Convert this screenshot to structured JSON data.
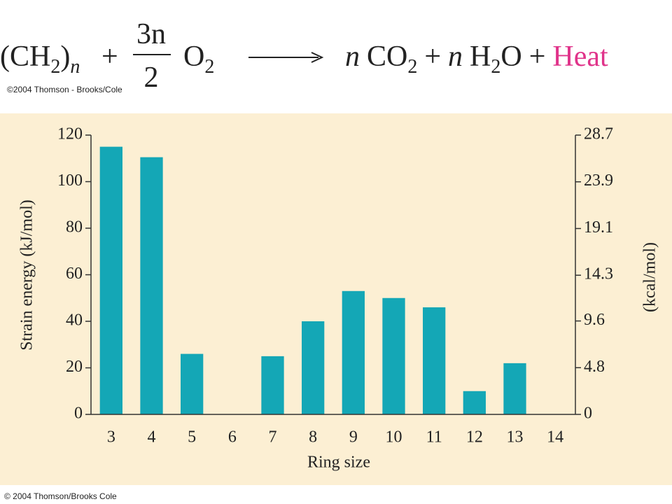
{
  "header": {
    "equation": {
      "reactant1": "(CH",
      "reactant1_sub": "2",
      "reactant1_close": ")",
      "reactant1_index": "n",
      "plus1": "+",
      "coef_num": "3n",
      "coef_den": "2",
      "reactant2": "O",
      "reactant2_sub": "2",
      "product1_coef": "n",
      "product1": "CO",
      "product1_sub": "2",
      "plus2": "+",
      "product2_coef": "n",
      "product2_a": "H",
      "product2_sub": "2",
      "product2_b": "O",
      "plus3": "+",
      "heat": "Heat"
    },
    "copyright": "©2004 Thomson - Brooks/Cole"
  },
  "chart_data": {
    "type": "bar",
    "x_label": "Ring size",
    "y_label": "Strain energy (kJ/mol)",
    "y2_label": "(kcal/mol)",
    "categories": [
      3,
      4,
      5,
      6,
      7,
      8,
      9,
      10,
      11,
      12,
      13,
      14
    ],
    "values": [
      115,
      110.5,
      26,
      0,
      25,
      40,
      53,
      50,
      46,
      10,
      22,
      0
    ],
    "color": "#14a7b6",
    "ylim": [
      0,
      120
    ],
    "yticks": [
      0,
      20,
      40,
      60,
      80,
      100,
      120
    ],
    "y2lim": [
      0,
      28.7
    ],
    "y2ticks": [
      0,
      4.8,
      9.6,
      14.3,
      19.1,
      23.9,
      28.7
    ]
  },
  "footer": {
    "copyright": "© 2004 Thomson/Brooks Cole"
  }
}
